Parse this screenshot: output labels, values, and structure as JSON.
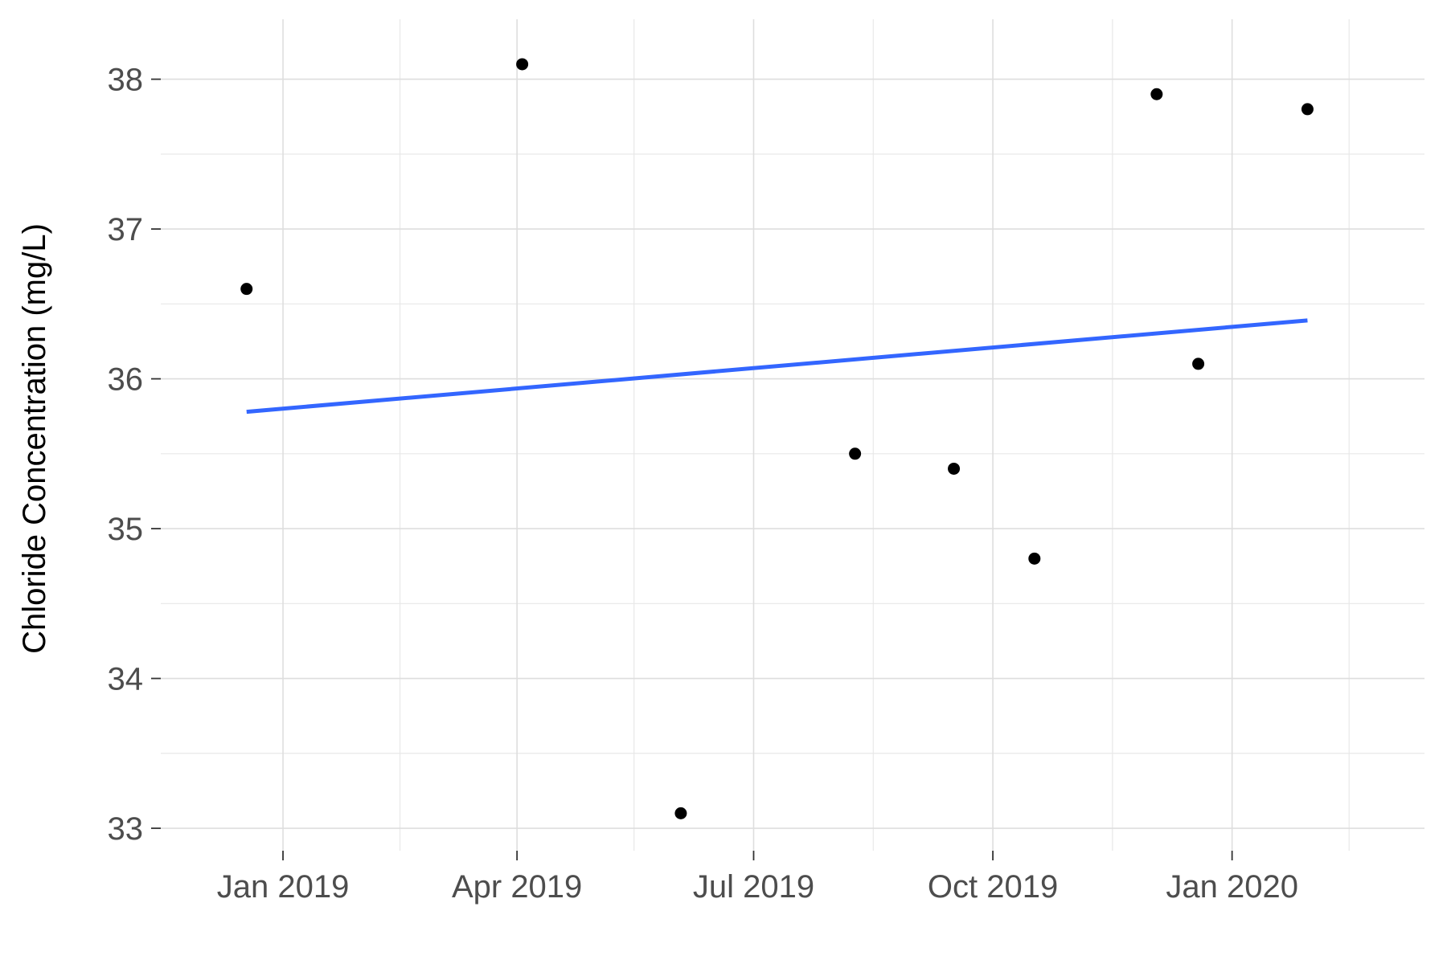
{
  "chart_data": {
    "type": "scatter",
    "title": "",
    "xlabel": "",
    "ylabel": "Chloride Concentration (mg/L)",
    "x_axis_type": "date",
    "xlim": [
      "2018-11-15",
      "2020-03-15"
    ],
    "ylim": [
      32.85,
      38.4
    ],
    "x_ticks": [
      {
        "date": "2019-01-01",
        "label": "Jan 2019"
      },
      {
        "date": "2019-04-01",
        "label": "Apr 2019"
      },
      {
        "date": "2019-07-01",
        "label": "Jul 2019"
      },
      {
        "date": "2019-10-01",
        "label": "Oct 2019"
      },
      {
        "date": "2020-01-01",
        "label": "Jan 2020"
      }
    ],
    "x_minor_ticks": [
      "2019-02-15",
      "2019-05-16",
      "2019-08-16",
      "2019-11-16",
      "2020-02-15"
    ],
    "y_ticks": [
      33,
      34,
      35,
      36,
      37,
      38
    ],
    "y_minor_ticks": [
      33.5,
      34.5,
      35.5,
      36.5,
      37.5
    ],
    "grid": true,
    "points": [
      {
        "x": "2018-12-18",
        "y": 36.6
      },
      {
        "x": "2019-04-03",
        "y": 38.1
      },
      {
        "x": "2019-06-03",
        "y": 33.1
      },
      {
        "x": "2019-08-09",
        "y": 35.5
      },
      {
        "x": "2019-09-16",
        "y": 35.4
      },
      {
        "x": "2019-10-17",
        "y": 34.8
      },
      {
        "x": "2019-12-03",
        "y": 37.9
      },
      {
        "x": "2019-12-19",
        "y": 36.1
      },
      {
        "x": "2020-01-30",
        "y": 37.8
      }
    ],
    "trend_line": {
      "x": [
        "2018-12-18",
        "2020-01-30"
      ],
      "y": [
        35.78,
        36.39
      ]
    },
    "colors": {
      "points": "#000000",
      "trend_line": "#3366ff",
      "grid": "#dedede",
      "tick_labels": "#4d4d4d"
    }
  }
}
